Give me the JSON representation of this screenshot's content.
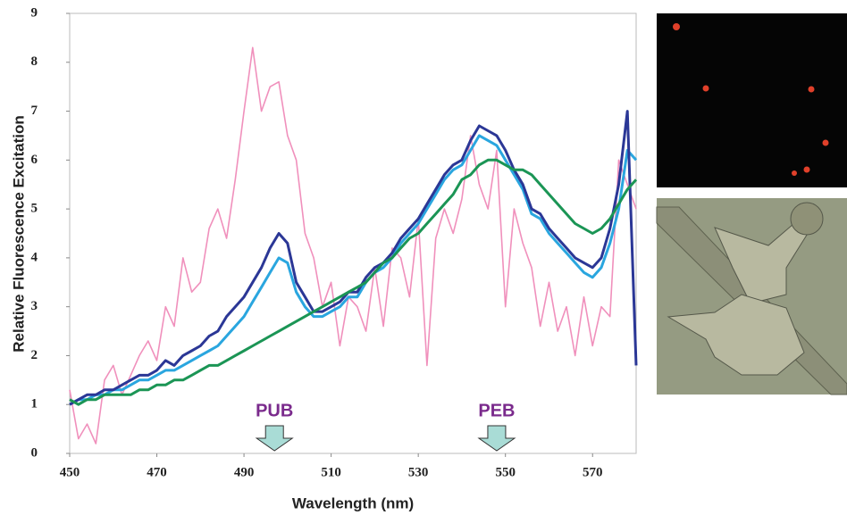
{
  "chart_data": {
    "type": "line",
    "y_label": "Relative Fluorescence Excitation",
    "x_label": "Wavelength (nm)",
    "x": [
      450,
      452,
      454,
      456,
      458,
      460,
      462,
      464,
      466,
      468,
      470,
      472,
      474,
      476,
      478,
      480,
      482,
      484,
      486,
      488,
      490,
      492,
      494,
      496,
      498,
      500,
      502,
      504,
      506,
      508,
      510,
      512,
      514,
      516,
      518,
      520,
      522,
      524,
      526,
      528,
      530,
      532,
      534,
      536,
      538,
      540,
      542,
      544,
      546,
      548,
      550,
      552,
      554,
      556,
      558,
      560,
      562,
      564,
      566,
      568,
      570,
      572,
      574,
      576,
      578,
      580
    ],
    "series": [
      {
        "color": "#f090bc",
        "values": [
          1.3,
          0.3,
          0.6,
          0.2,
          1.5,
          1.8,
          1.2,
          1.6,
          2.0,
          2.3,
          1.9,
          3.0,
          2.6,
          4.0,
          3.3,
          3.5,
          4.6,
          5.0,
          4.4,
          5.6,
          7.0,
          8.3,
          7.0,
          7.5,
          7.6,
          6.5,
          6.0,
          4.5,
          4.0,
          3.0,
          3.5,
          2.2,
          3.2,
          3.0,
          2.5,
          3.8,
          2.6,
          4.2,
          4.0,
          3.2,
          4.8,
          1.8,
          4.4,
          5.0,
          4.5,
          5.2,
          6.5,
          5.5,
          5.0,
          6.2,
          3.0,
          5.0,
          4.3,
          3.8,
          2.6,
          3.5,
          2.5,
          3.0,
          2.0,
          3.2,
          2.2,
          3.0,
          2.8,
          6.0,
          5.5,
          5.0
        ]
      },
      {
        "color": "#2aa6df",
        "values": [
          1.0,
          1.1,
          1.1,
          1.2,
          1.2,
          1.3,
          1.3,
          1.4,
          1.5,
          1.5,
          1.6,
          1.7,
          1.7,
          1.8,
          1.9,
          2.0,
          2.1,
          2.2,
          2.4,
          2.6,
          2.8,
          3.1,
          3.4,
          3.7,
          4.0,
          3.9,
          3.3,
          3.0,
          2.8,
          2.8,
          2.9,
          3.0,
          3.2,
          3.2,
          3.5,
          3.7,
          3.8,
          4.0,
          4.3,
          4.5,
          4.7,
          5.0,
          5.3,
          5.6,
          5.8,
          5.9,
          6.2,
          6.5,
          6.4,
          6.3,
          6.0,
          5.7,
          5.4,
          4.9,
          4.8,
          4.5,
          4.3,
          4.1,
          3.9,
          3.7,
          3.6,
          3.8,
          4.3,
          5.0,
          6.2,
          6.0
        ]
      },
      {
        "color": "#2b3796",
        "values": [
          1.0,
          1.1,
          1.2,
          1.2,
          1.3,
          1.3,
          1.4,
          1.5,
          1.6,
          1.6,
          1.7,
          1.9,
          1.8,
          2.0,
          2.1,
          2.2,
          2.4,
          2.5,
          2.8,
          3.0,
          3.2,
          3.5,
          3.8,
          4.2,
          4.5,
          4.3,
          3.5,
          3.2,
          2.9,
          2.9,
          3.0,
          3.1,
          3.3,
          3.3,
          3.6,
          3.8,
          3.9,
          4.1,
          4.4,
          4.6,
          4.8,
          5.1,
          5.4,
          5.7,
          5.9,
          6.0,
          6.4,
          6.7,
          6.6,
          6.5,
          6.2,
          5.8,
          5.5,
          5.0,
          4.9,
          4.6,
          4.4,
          4.2,
          4.0,
          3.9,
          3.8,
          4.0,
          4.6,
          5.5,
          7.0,
          1.8
        ]
      },
      {
        "color": "#1b9555",
        "values": [
          1.1,
          1.0,
          1.1,
          1.1,
          1.2,
          1.2,
          1.2,
          1.2,
          1.3,
          1.3,
          1.4,
          1.4,
          1.5,
          1.5,
          1.6,
          1.7,
          1.8,
          1.8,
          1.9,
          2.0,
          2.1,
          2.2,
          2.3,
          2.4,
          2.5,
          2.6,
          2.7,
          2.8,
          2.9,
          3.0,
          3.1,
          3.2,
          3.3,
          3.4,
          3.5,
          3.7,
          3.9,
          4.0,
          4.2,
          4.4,
          4.5,
          4.7,
          4.9,
          5.1,
          5.3,
          5.6,
          5.7,
          5.9,
          6.0,
          6.0,
          5.9,
          5.8,
          5.8,
          5.7,
          5.5,
          5.3,
          5.1,
          4.9,
          4.7,
          4.6,
          4.5,
          4.6,
          4.8,
          5.1,
          5.4,
          5.6
        ]
      }
    ],
    "annotations": [
      {
        "text": "PUB",
        "x": 497
      },
      {
        "text": "PEB",
        "x": 548
      }
    ],
    "xlim": [
      450,
      580
    ],
    "ylim": [
      0,
      9
    ],
    "xticks": [
      450,
      470,
      490,
      510,
      530,
      550,
      570
    ],
    "yticks": [
      0,
      1,
      2,
      3,
      4,
      5,
      6,
      7,
      8,
      9
    ]
  }
}
